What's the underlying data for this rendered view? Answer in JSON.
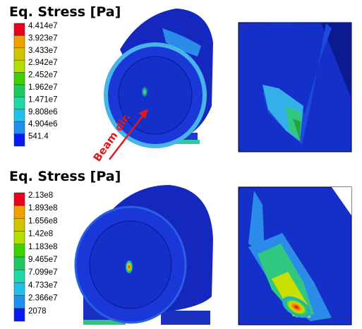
{
  "panels": [
    {
      "title": "Eq. Stress [Pa]",
      "legend": [
        "4.414e7",
        "3.923e7",
        "3.433e7",
        "2.942e7",
        "2.452e7",
        "1.962e7",
        "1.471e7",
        "9.808e6",
        "4.904e6",
        "541.4"
      ],
      "annotation": "Beam dir."
    },
    {
      "title": "Eq. Stress [Pa]",
      "legend": [
        "2.13e8",
        "1.893e8",
        "1.656e8",
        "1.42e8",
        "1.183e8",
        "9.465e7",
        "7.099e7",
        "4.733e7",
        "2.366e7",
        "2078"
      ]
    }
  ]
}
